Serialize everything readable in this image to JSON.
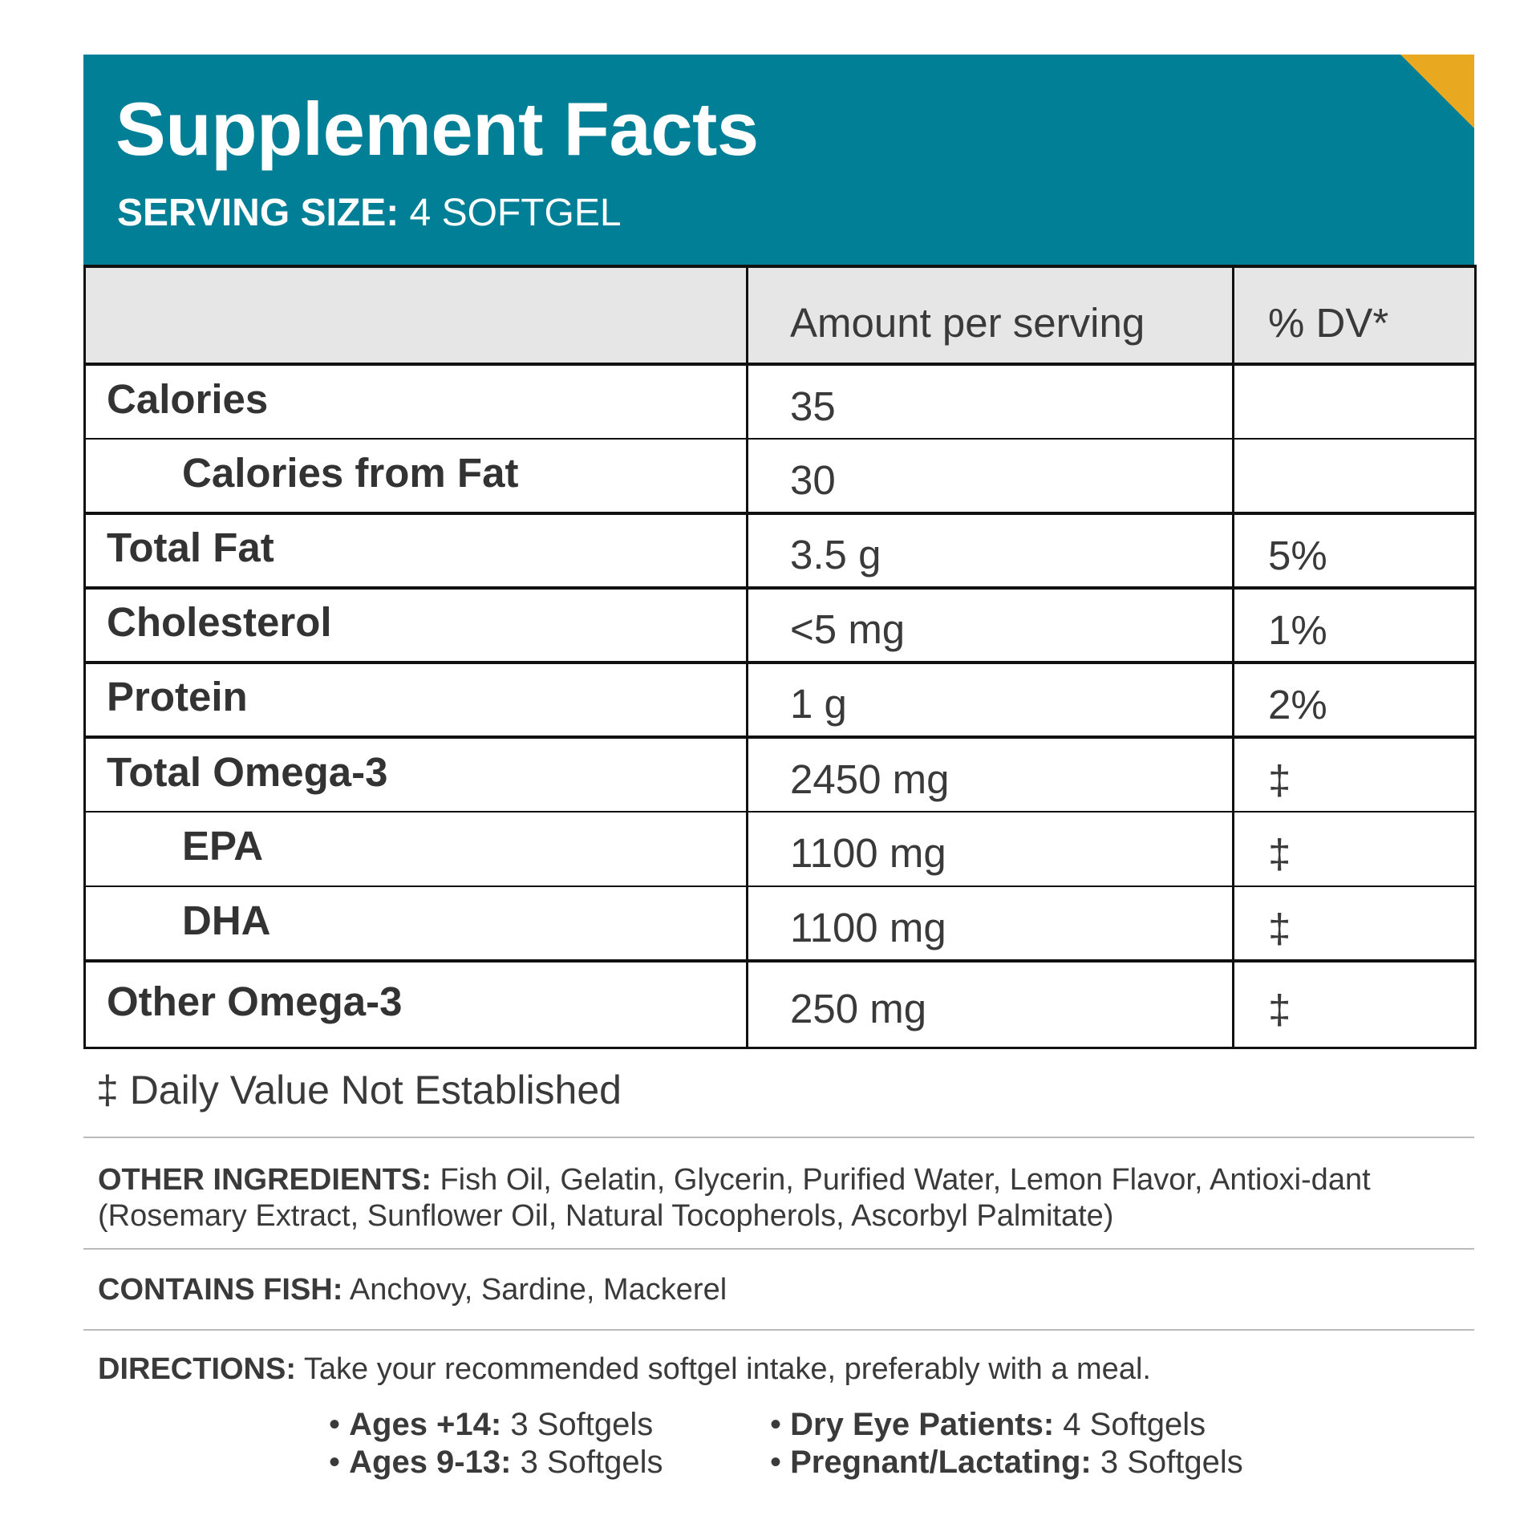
{
  "header": {
    "title": "Supplement Facts",
    "serving_label": "SERVING SIZE:",
    "serving_value": "4 SOFTGEL",
    "accent_color": "#007f96",
    "corner_color": "#e8a820"
  },
  "table": {
    "columns": [
      "",
      "Amount per serving",
      "% DV*"
    ],
    "rows": [
      {
        "nutrient": "Calories",
        "amount": "35",
        "dv": "",
        "indent": false
      },
      {
        "nutrient": "Calories from Fat",
        "amount": "30",
        "dv": "",
        "indent": true
      },
      {
        "nutrient": "Total Fat",
        "amount": "3.5 g",
        "dv": "5%",
        "indent": false
      },
      {
        "nutrient": "Cholesterol",
        "amount": "<5 mg",
        "dv": "1%",
        "indent": false
      },
      {
        "nutrient": "Protein",
        "amount": "1 g",
        "dv": "2%",
        "indent": false
      },
      {
        "nutrient": "Total Omega-3",
        "amount": "2450 mg",
        "dv": "‡",
        "indent": false
      },
      {
        "nutrient": "EPA",
        "amount": "1100 mg",
        "dv": "‡",
        "indent": true
      },
      {
        "nutrient": "DHA",
        "amount": "1100 mg",
        "dv": "‡",
        "indent": true
      },
      {
        "nutrient": "Other Omega-3",
        "amount": "250 mg",
        "dv": "‡",
        "indent": false
      }
    ]
  },
  "footnote": "‡ Daily Value Not Established",
  "other_ingredients": {
    "label": "OTHER INGREDIENTS:",
    "text": "Fish Oil, Gelatin, Glycerin, Purified Water, Lemon Flavor, Antioxi-dant (Rosemary Extract, Sunflower Oil, Natural Tocopherols, Ascorbyl Palmitate)"
  },
  "contains_fish": {
    "label": "CONTAINS FISH:",
    "text": "Anchovy, Sardine, Mackerel"
  },
  "directions": {
    "label": "DIRECTIONS:",
    "text": "Take your recommended softgel intake, preferably with a meal.",
    "doses": [
      {
        "label": "Ages +14:",
        "value": "3 Softgels"
      },
      {
        "label": "Ages 9-13:",
        "value": "3 Softgels"
      },
      {
        "label": "Dry Eye Patients:",
        "value": "4 Softgels"
      },
      {
        "label": "Pregnant/Lactating:",
        "value": "3 Softgels"
      }
    ]
  }
}
